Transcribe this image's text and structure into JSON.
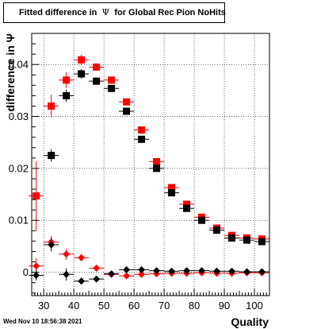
{
  "title": {
    "prefix": "Fitted difference in",
    "symbol": "Ψ",
    "suffix": "for Global Rec Pion NoHits"
  },
  "footer": {
    "date": "Wed Nov 10 18:56:38 2021"
  },
  "chart_data": {
    "type": "scatter",
    "xlabel": "Quality",
    "ylabel": "difference in Ψ",
    "xlim": [
      26,
      105
    ],
    "ylim": [
      -0.0045,
      0.046
    ],
    "grid": true,
    "x_ticks": [
      30,
      40,
      50,
      60,
      70,
      80,
      90,
      100
    ],
    "y_ticks": [
      0,
      0.01,
      0.02,
      0.03,
      0.04
    ],
    "y_tick_labels": [
      "0",
      "0.01",
      "0.02",
      "0.03",
      "0.04"
    ],
    "series": [
      {
        "marker": "square",
        "color": "#ff0000",
        "points": [
          {
            "x": 27.5,
            "y": 0.0147,
            "err": 0.0067
          },
          {
            "x": 32.5,
            "y": 0.032,
            "err": 0.0022
          },
          {
            "x": 37.5,
            "y": 0.037,
            "err": 0.0015
          },
          {
            "x": 42.5,
            "y": 0.0409,
            "err": 0.001
          },
          {
            "x": 47.5,
            "y": 0.0395,
            "err": 0.0007
          },
          {
            "x": 52.5,
            "y": 0.037,
            "err": 0.0006
          },
          {
            "x": 57.5,
            "y": 0.0328,
            "err": 0.0005
          },
          {
            "x": 62.5,
            "y": 0.0274,
            "err": 0.0004
          },
          {
            "x": 67.5,
            "y": 0.0213,
            "err": 0.0004
          },
          {
            "x": 72.5,
            "y": 0.0163,
            "err": 0.0003
          },
          {
            "x": 77.5,
            "y": 0.0131,
            "err": 0.0003
          },
          {
            "x": 82.5,
            "y": 0.0106,
            "err": 0.0003
          },
          {
            "x": 87.5,
            "y": 0.0085,
            "err": 0.0003
          },
          {
            "x": 92.5,
            "y": 0.0071,
            "err": 0.0003
          },
          {
            "x": 97.5,
            "y": 0.0066,
            "err": 0.0003
          },
          {
            "x": 102.5,
            "y": 0.0064,
            "err": 0.0003
          }
        ]
      },
      {
        "marker": "square",
        "color": "#000000",
        "points": [
          {
            "x": 32.5,
            "y": 0.0225,
            "err": 0.0012
          },
          {
            "x": 37.5,
            "y": 0.034,
            "err": 0.0012
          },
          {
            "x": 42.5,
            "y": 0.0382,
            "err": 0.0009
          },
          {
            "x": 47.5,
            "y": 0.0368,
            "err": 0.0006
          },
          {
            "x": 52.5,
            "y": 0.0354,
            "err": 0.0005
          },
          {
            "x": 57.5,
            "y": 0.031,
            "err": 0.0004
          },
          {
            "x": 62.5,
            "y": 0.0256,
            "err": 0.0004
          },
          {
            "x": 67.5,
            "y": 0.02,
            "err": 0.0003
          },
          {
            "x": 72.5,
            "y": 0.0153,
            "err": 0.0003
          },
          {
            "x": 77.5,
            "y": 0.0123,
            "err": 0.0003
          },
          {
            "x": 82.5,
            "y": 0.01,
            "err": 0.0002
          },
          {
            "x": 87.5,
            "y": 0.0081,
            "err": 0.0002
          },
          {
            "x": 92.5,
            "y": 0.0066,
            "err": 0.0002
          },
          {
            "x": 97.5,
            "y": 0.0062,
            "err": 0.0002
          },
          {
            "x": 102.5,
            "y": 0.0059,
            "err": 0.0002
          }
        ]
      },
      {
        "marker": "diamond",
        "color": "#ff0000",
        "points": [
          {
            "x": 27.5,
            "y": 0.0012,
            "err": 0.0015
          },
          {
            "x": 32.5,
            "y": 0.0058,
            "err": 0.0012
          },
          {
            "x": 37.5,
            "y": 0.0035,
            "err": 0.0011
          },
          {
            "x": 42.5,
            "y": 0.0028,
            "err": 0.0007
          },
          {
            "x": 47.5,
            "y": 0.0008,
            "err": 0.0005
          },
          {
            "x": 52.5,
            "y": -0.0004,
            "err": 0.0004
          },
          {
            "x": 57.5,
            "y": -0.0007,
            "err": 0.0003
          },
          {
            "x": 62.5,
            "y": -0.0004,
            "err": 0.0003
          },
          {
            "x": 67.5,
            "y": -0.0003,
            "err": 0.0003
          },
          {
            "x": 72.5,
            "y": -0.0002,
            "err": 0.0003
          },
          {
            "x": 77.5,
            "y": -0.0002,
            "err": 0.0002
          },
          {
            "x": 82.5,
            "y": -0.0001,
            "err": 0.0002
          },
          {
            "x": 87.5,
            "y": -0.0002,
            "err": 0.0002
          },
          {
            "x": 92.5,
            "y": -0.0002,
            "err": 0.0002
          },
          {
            "x": 97.5,
            "y": -0.0001,
            "err": 0.0002
          },
          {
            "x": 102.5,
            "y": -0.0001,
            "err": 0.0002
          }
        ]
      },
      {
        "marker": "diamond",
        "color": "#000000",
        "points": [
          {
            "x": 27.5,
            "y": -0.0006,
            "err": 0.001
          },
          {
            "x": 32.5,
            "y": 0.0053,
            "err": 0.0013
          },
          {
            "x": 37.5,
            "y": -0.0004,
            "err": 0.0012
          },
          {
            "x": 42.5,
            "y": -0.0017,
            "err": 0.0006
          },
          {
            "x": 47.5,
            "y": -0.0013,
            "err": 0.0005
          },
          {
            "x": 52.5,
            "y": -0.0003,
            "err": 0.0004
          },
          {
            "x": 57.5,
            "y": 0.0005,
            "err": 0.0003
          },
          {
            "x": 62.5,
            "y": 0.0005,
            "err": 0.0003
          },
          {
            "x": 67.5,
            "y": 0.0003,
            "err": 0.0003
          },
          {
            "x": 72.5,
            "y": 0.0002,
            "err": 0.0002
          },
          {
            "x": 77.5,
            "y": 0.0003,
            "err": 0.0002
          },
          {
            "x": 82.5,
            "y": 0.0003,
            "err": 0.0002
          },
          {
            "x": 87.5,
            "y": 0.0002,
            "err": 0.0002
          },
          {
            "x": 92.5,
            "y": 0.0002,
            "err": 0.0002
          },
          {
            "x": 97.5,
            "y": 0.0001,
            "err": 0.0002
          },
          {
            "x": 102.5,
            "y": 0.0001,
            "err": 0.0002
          }
        ]
      }
    ]
  }
}
